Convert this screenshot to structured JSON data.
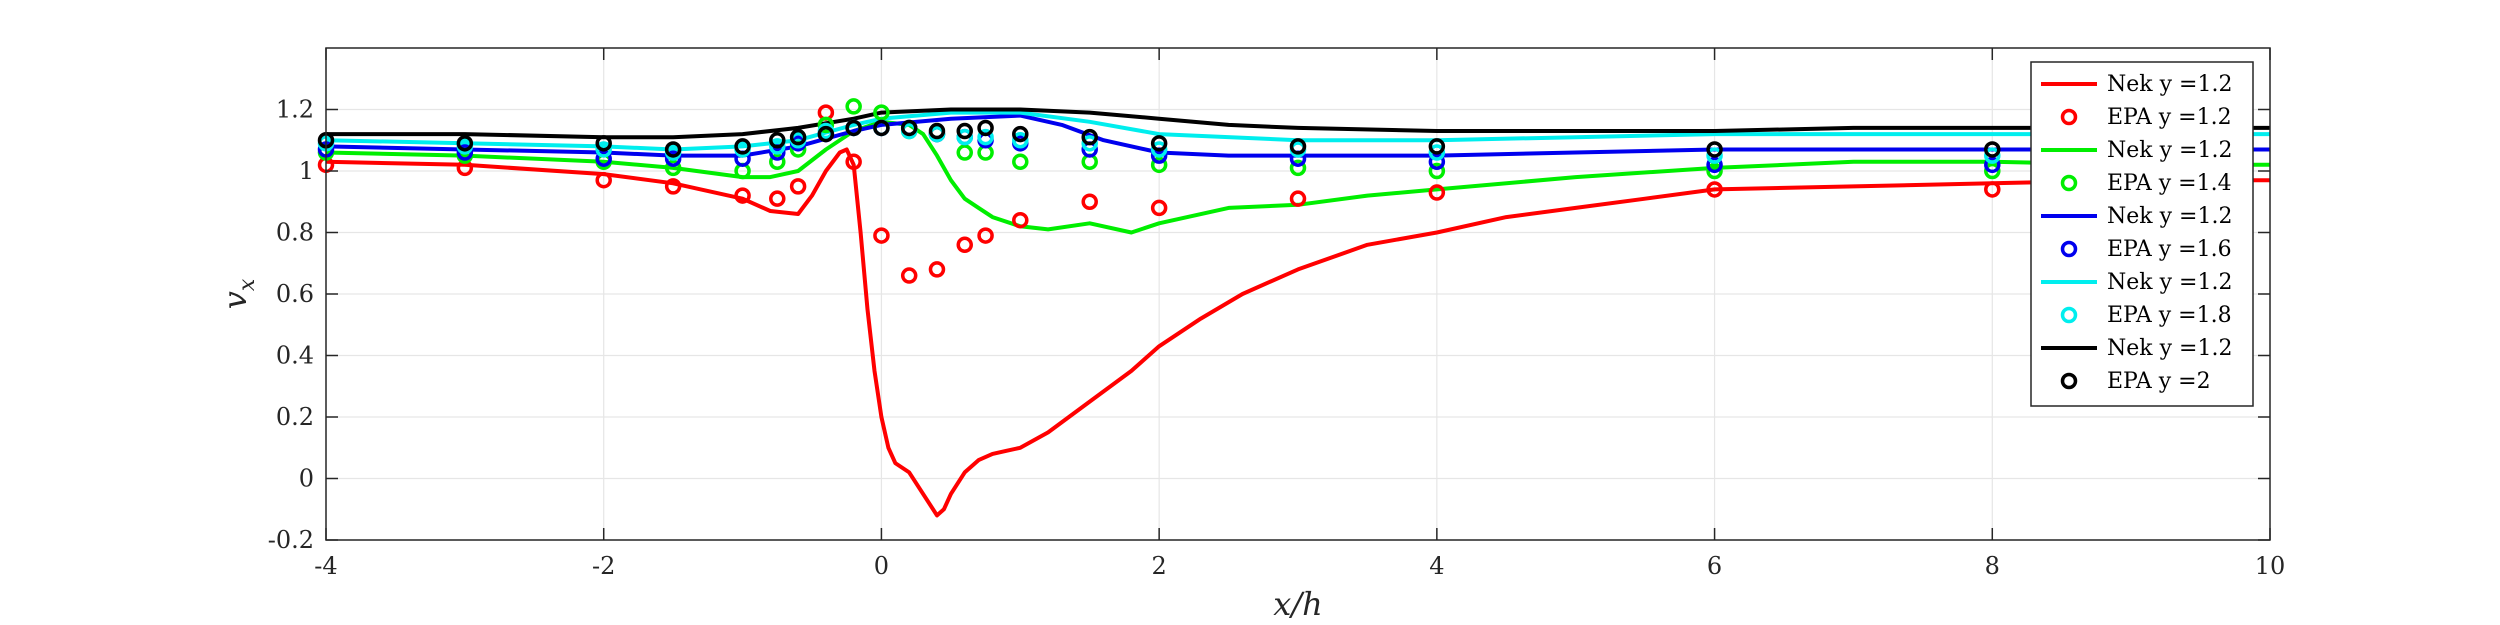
{
  "chart_data": {
    "type": "line",
    "title": "",
    "xlabel": "x/h",
    "ylabel": "v_x",
    "xlim": [
      -4,
      10
    ],
    "ylim": [
      -0.2,
      1.4
    ],
    "x_ticks": [
      -4,
      -2,
      0,
      2,
      4,
      6,
      8,
      10
    ],
    "x_tick_labels": [
      "-4",
      "-2",
      "0",
      "2",
      "4",
      "6",
      "8",
      "10"
    ],
    "y_ticks": [
      -0.2,
      0,
      0.2,
      0.4,
      0.6,
      0.8,
      1,
      1.2
    ],
    "y_tick_labels": [
      "-0.2",
      "0",
      "0.2",
      "0.4",
      "0.6",
      "0.8",
      "1",
      "1.2"
    ],
    "grid": true,
    "legend_position": "top-right",
    "series": [
      {
        "name": "Nek y =1.2",
        "kind": "line",
        "color": "#ff0000",
        "x": [
          -4,
          -3,
          -2,
          -1.5,
          -1,
          -0.8,
          -0.6,
          -0.5,
          -0.4,
          -0.3,
          -0.25,
          -0.2,
          -0.15,
          -0.1,
          -0.05,
          0,
          0.05,
          0.1,
          0.2,
          0.3,
          0.4,
          0.45,
          0.5,
          0.6,
          0.7,
          0.8,
          0.9,
          1.0,
          1.2,
          1.5,
          1.8,
          2.0,
          2.3,
          2.6,
          3.0,
          3.5,
          4.0,
          4.5,
          5.0,
          5.5,
          6.0,
          7.0,
          8.0,
          9.0,
          10
        ],
        "y": [
          1.03,
          1.02,
          0.99,
          0.96,
          0.91,
          0.87,
          0.86,
          0.92,
          1.0,
          1.06,
          1.07,
          1.02,
          0.8,
          0.55,
          0.35,
          0.2,
          0.1,
          0.05,
          0.02,
          -0.05,
          -0.12,
          -0.1,
          -0.05,
          0.02,
          0.06,
          0.08,
          0.09,
          0.1,
          0.15,
          0.25,
          0.35,
          0.43,
          0.52,
          0.6,
          0.68,
          0.76,
          0.8,
          0.85,
          0.88,
          0.91,
          0.94,
          0.95,
          0.96,
          0.97,
          0.97
        ]
      },
      {
        "name": "EPA y =1.2",
        "kind": "markers",
        "color": "#ff0000",
        "x": [
          -4,
          -3,
          -2,
          -1.5,
          -1,
          -0.75,
          -0.6,
          -0.4,
          -0.2,
          0,
          0.2,
          0.4,
          0.6,
          0.75,
          1,
          1.5,
          2,
          3,
          4,
          6,
          8
        ],
        "y": [
          1.02,
          1.01,
          0.97,
          0.95,
          0.92,
          0.91,
          0.95,
          1.19,
          1.03,
          0.79,
          0.66,
          0.68,
          0.76,
          0.79,
          0.84,
          0.9,
          0.88,
          0.91,
          0.93,
          0.94,
          0.94
        ]
      },
      {
        "name": "Nek y =1.2",
        "kind": "line",
        "color": "#00ee00",
        "x": [
          -4,
          -3,
          -2,
          -1.5,
          -1,
          -0.8,
          -0.6,
          -0.4,
          -0.2,
          0,
          0.2,
          0.3,
          0.4,
          0.5,
          0.6,
          0.7,
          0.8,
          1.0,
          1.2,
          1.5,
          1.8,
          2.0,
          2.5,
          3.0,
          3.5,
          4.0,
          5.0,
          6.0,
          7.0,
          8.0,
          9.0,
          10
        ],
        "y": [
          1.06,
          1.05,
          1.03,
          1.01,
          0.98,
          0.98,
          1.0,
          1.07,
          1.13,
          1.16,
          1.15,
          1.12,
          1.05,
          0.97,
          0.91,
          0.88,
          0.85,
          0.82,
          0.81,
          0.83,
          0.8,
          0.83,
          0.88,
          0.89,
          0.92,
          0.94,
          0.98,
          1.01,
          1.03,
          1.03,
          1.02,
          1.02
        ]
      },
      {
        "name": "EPA y =1.4",
        "kind": "markers",
        "color": "#00ee00",
        "x": [
          -4,
          -3,
          -2,
          -1.5,
          -1,
          -0.75,
          -0.6,
          -0.4,
          -0.2,
          0,
          0.2,
          0.4,
          0.6,
          0.75,
          1,
          1.5,
          2,
          3,
          4,
          6,
          8
        ],
        "y": [
          1.06,
          1.05,
          1.03,
          1.01,
          1.0,
          1.03,
          1.07,
          1.15,
          1.21,
          1.19,
          1.13,
          1.12,
          1.06,
          1.06,
          1.03,
          1.03,
          1.02,
          1.01,
          1.0,
          1.0,
          1.0
        ]
      },
      {
        "name": "Nek y =1.2",
        "kind": "line",
        "color": "#0000ee",
        "x": [
          -4,
          -3,
          -2,
          -1.5,
          -1,
          -0.6,
          -0.2,
          0,
          0.5,
          1.0,
          1.3,
          1.6,
          2.0,
          2.5,
          3.0,
          4.0,
          5.0,
          6.0,
          7.0,
          8.0,
          9.0,
          10
        ],
        "y": [
          1.08,
          1.07,
          1.06,
          1.05,
          1.05,
          1.08,
          1.13,
          1.15,
          1.17,
          1.18,
          1.15,
          1.1,
          1.06,
          1.05,
          1.05,
          1.05,
          1.06,
          1.07,
          1.07,
          1.07,
          1.07,
          1.07
        ]
      },
      {
        "name": "EPA y =1.6",
        "kind": "markers",
        "color": "#0000ee",
        "x": [
          -4,
          -3,
          -2,
          -1.5,
          -1,
          -0.75,
          -0.6,
          -0.4,
          -0.2,
          0,
          0.2,
          0.4,
          0.6,
          0.75,
          1,
          1.5,
          2,
          3,
          4,
          6,
          8
        ],
        "y": [
          1.07,
          1.06,
          1.04,
          1.04,
          1.04,
          1.06,
          1.09,
          1.12,
          1.14,
          1.14,
          1.14,
          1.12,
          1.11,
          1.1,
          1.09,
          1.07,
          1.05,
          1.04,
          1.03,
          1.02,
          1.02
        ]
      },
      {
        "name": "Nek y =1.2",
        "kind": "line",
        "color": "#00eeee",
        "x": [
          -4,
          -3,
          -2,
          -1.5,
          -1,
          -0.6,
          -0.2,
          0,
          0.5,
          1.0,
          1.5,
          2.0,
          3.0,
          4.0,
          5.0,
          6.0,
          7.0,
          8.0,
          9.0,
          10
        ],
        "y": [
          1.1,
          1.09,
          1.08,
          1.07,
          1.08,
          1.1,
          1.15,
          1.17,
          1.19,
          1.19,
          1.16,
          1.12,
          1.1,
          1.1,
          1.11,
          1.12,
          1.12,
          1.12,
          1.12,
          1.12
        ]
      },
      {
        "name": "EPA y =1.8",
        "kind": "markers",
        "color": "#00eeee",
        "x": [
          -4,
          -3,
          -2,
          -1.5,
          -1,
          -0.75,
          -0.6,
          -0.4,
          -0.2,
          0,
          0.2,
          0.4,
          0.6,
          0.75,
          1,
          1.5,
          2,
          3,
          4,
          6,
          8
        ],
        "y": [
          1.09,
          1.08,
          1.07,
          1.06,
          1.07,
          1.08,
          1.1,
          1.13,
          1.14,
          1.14,
          1.13,
          1.12,
          1.11,
          1.11,
          1.1,
          1.09,
          1.07,
          1.07,
          1.06,
          1.05,
          1.05
        ]
      },
      {
        "name": "Nek y =1.2",
        "kind": "line",
        "color": "#000000",
        "x": [
          -4,
          -3,
          -2,
          -1.5,
          -1,
          -0.6,
          -0.2,
          0,
          0.5,
          1.0,
          1.5,
          2.0,
          2.5,
          3.0,
          4.0,
          5.0,
          6.0,
          7.0,
          8.0,
          9.0,
          10
        ],
        "y": [
          1.12,
          1.12,
          1.11,
          1.11,
          1.12,
          1.14,
          1.17,
          1.19,
          1.2,
          1.2,
          1.19,
          1.17,
          1.15,
          1.14,
          1.13,
          1.13,
          1.13,
          1.14,
          1.14,
          1.14,
          1.14
        ]
      },
      {
        "name": "EPA y =2",
        "kind": "markers",
        "color": "#000000",
        "x": [
          -4,
          -3,
          -2,
          -1.5,
          -1,
          -0.75,
          -0.6,
          -0.4,
          -0.2,
          0,
          0.2,
          0.4,
          0.6,
          0.75,
          1,
          1.5,
          2,
          3,
          4,
          6,
          8
        ],
        "y": [
          1.1,
          1.09,
          1.09,
          1.07,
          1.08,
          1.1,
          1.11,
          1.12,
          1.14,
          1.14,
          1.14,
          1.13,
          1.13,
          1.14,
          1.12,
          1.11,
          1.09,
          1.08,
          1.08,
          1.07,
          1.07
        ]
      }
    ]
  }
}
